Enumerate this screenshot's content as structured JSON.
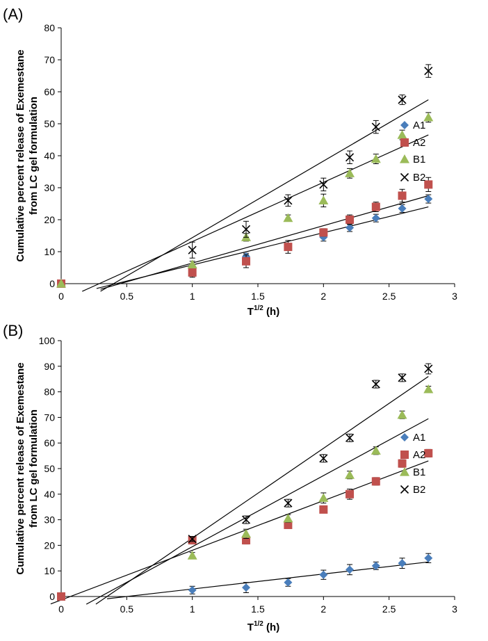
{
  "chart_data": [
    {
      "panel_label": "(A)",
      "type": "scatter",
      "xlabel": "T",
      "xlabel_sup": "1/2",
      "xlabel_suffix": "(h)",
      "ylabel": [
        "Cumulative percent release of Exemestane",
        "from LC gel formulation"
      ],
      "xlim": [
        0,
        3
      ],
      "ylim": [
        0,
        80
      ],
      "xticks": [
        0,
        0.5,
        1,
        1.5,
        2,
        2.5,
        3
      ],
      "yticks": [
        0,
        10,
        20,
        30,
        40,
        50,
        60,
        70,
        80
      ],
      "xtick_labels": [
        "0",
        "0.5",
        "1",
        "1.5",
        "2",
        "2.5",
        "3"
      ],
      "ytick_labels": [
        "0",
        "10",
        "20",
        "30",
        "40",
        "50",
        "60",
        "70",
        "80"
      ],
      "grid": false,
      "legend_position": "right",
      "series": [
        {
          "name": "A1",
          "marker": "diamond",
          "color": "#4a7ebb",
          "x": [
            0,
            1,
            1.41,
            2,
            2.2,
            2.4,
            2.6,
            2.8
          ],
          "y": [
            0,
            5,
            8.5,
            14.5,
            17.5,
            20.5,
            23.5,
            26.5
          ],
          "err": [
            0,
            1,
            1,
            1.2,
            1.2,
            1.2,
            1.2,
            1.3
          ],
          "fit": [
            [
              0.42,
              0
            ],
            [
              2.8,
              24
            ]
          ]
        },
        {
          "name": "A2",
          "marker": "square",
          "color": "#c0504d",
          "x": [
            0,
            1,
            1.41,
            1.73,
            2,
            2.2,
            2.4,
            2.6,
            2.8
          ],
          "y": [
            0,
            3.5,
            7,
            11.5,
            16,
            20,
            24,
            27.5,
            31
          ],
          "err": [
            0,
            1.5,
            2,
            2,
            1.2,
            1.5,
            1.5,
            2,
            2.2
          ],
          "fit": [
            [
              0.45,
              0
            ],
            [
              2.8,
              27.5
            ]
          ]
        },
        {
          "name": "B1",
          "marker": "triangle",
          "color": "#9bbb59",
          "x": [
            0,
            1,
            1.41,
            1.73,
            2,
            2.2,
            2.4,
            2.6,
            2.8
          ],
          "y": [
            0,
            6,
            14.5,
            20.5,
            26,
            34.5,
            39,
            46.5,
            52
          ],
          "err": [
            0,
            1,
            1.2,
            1,
            2,
            1.5,
            1.5,
            1.5,
            1.5
          ],
          "fit": [
            [
              0.29,
              0
            ],
            [
              2.8,
              46.5
            ]
          ]
        },
        {
          "name": "B2",
          "marker": "x",
          "color": "#000000",
          "x": [
            1,
            1.41,
            1.73,
            2,
            2.2,
            2.4,
            2.6,
            2.8
          ],
          "y": [
            10.5,
            17,
            26,
            31,
            39.5,
            49,
            57.5,
            66.5
          ],
          "err": [
            2.5,
            2.5,
            1.8,
            2,
            2,
            2,
            1.5,
            2
          ],
          "fit": [
            [
              0.4,
              0
            ],
            [
              2.8,
              57.5
            ]
          ]
        }
      ]
    },
    {
      "panel_label": "(B)",
      "type": "scatter",
      "xlabel": "T",
      "xlabel_sup": "1/2",
      "xlabel_suffix": "(h)",
      "ylabel": [
        "Cumulative percent release of Exemestane",
        "from LC gel formulation"
      ],
      "xlim": [
        0,
        3
      ],
      "ylim": [
        0,
        100
      ],
      "xticks": [
        0,
        0.5,
        1,
        1.5,
        2,
        2.5,
        3
      ],
      "yticks": [
        0,
        10,
        20,
        30,
        40,
        50,
        60,
        70,
        80,
        90,
        100
      ],
      "xtick_labels": [
        "0",
        "0.5",
        "1",
        "1.5",
        "2",
        "2.5",
        "3"
      ],
      "ytick_labels": [
        "0",
        "10",
        "20",
        "30",
        "40",
        "50",
        "60",
        "70",
        "80",
        "90",
        "100"
      ],
      "grid": false,
      "legend_position": "right",
      "series": [
        {
          "name": "A1",
          "marker": "diamond",
          "color": "#4a7ebb",
          "x": [
            1,
            1.41,
            1.73,
            2,
            2.2,
            2.4,
            2.6,
            2.8
          ],
          "y": [
            2.5,
            3.5,
            5.5,
            8.5,
            10.5,
            12,
            13,
            15
          ],
          "err": [
            1.5,
            2,
            1.5,
            1.8,
            2,
            1.5,
            2,
            1.8
          ],
          "fit": [
            [
              0.5,
              0
            ],
            [
              2.8,
              13.5
            ]
          ]
        },
        {
          "name": "A2",
          "marker": "square",
          "color": "#c0504d",
          "x": [
            0,
            1,
            1.41,
            1.73,
            2,
            2.2,
            2.4,
            2.6,
            2.8
          ],
          "y": [
            0,
            22,
            22,
            28,
            34,
            40,
            45,
            52,
            56
          ],
          "err": [
            0,
            1.5,
            1.5,
            1.2,
            1.2,
            2,
            1.5,
            1.5,
            1.5
          ],
          "fit": [
            [
              0.07,
              0
            ],
            [
              2.8,
              53
            ]
          ]
        },
        {
          "name": "B1",
          "marker": "triangle",
          "color": "#9bbb59",
          "x": [
            1,
            1.41,
            1.73,
            2,
            2.2,
            2.4,
            2.6,
            2.8
          ],
          "y": [
            16,
            24.5,
            30.5,
            38.5,
            47.5,
            57,
            71,
            81
          ],
          "err": [
            1.2,
            1.8,
            1.5,
            2,
            1.5,
            1.5,
            1.5,
            1.2
          ],
          "fit": [
            [
              0.3,
              0
            ],
            [
              2.8,
              69.5
            ]
          ]
        },
        {
          "name": "B2",
          "marker": "x",
          "color": "#000000",
          "x": [
            1,
            1.41,
            1.73,
            2,
            2.2,
            2.4,
            2.6,
            2.8
          ],
          "y": [
            22.5,
            30,
            36.5,
            54,
            62,
            83,
            85.5,
            89
          ],
          "err": [
            1,
            1.5,
            1.5,
            1.5,
            1.5,
            1.5,
            1.5,
            2
          ],
          "fit": [
            [
              0.35,
              0
            ],
            [
              2.8,
              86
            ]
          ]
        }
      ]
    }
  ]
}
